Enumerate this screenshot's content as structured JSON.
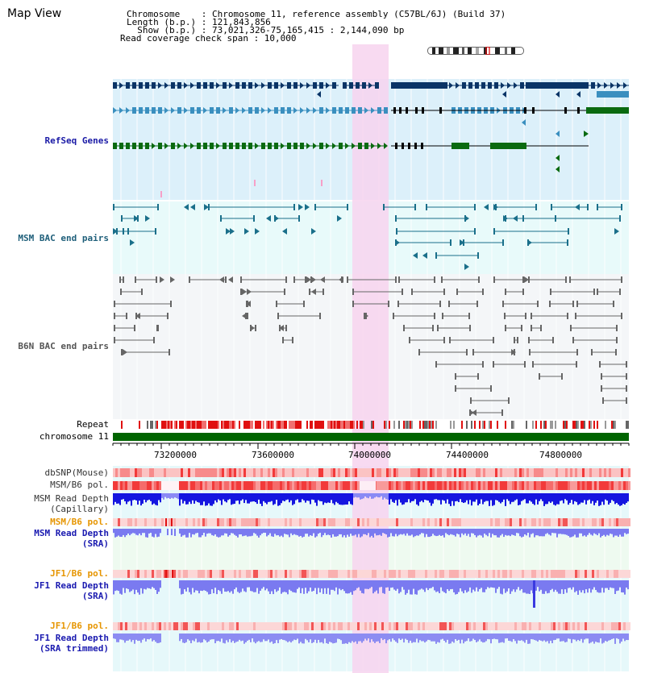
{
  "header": {
    "view_title": "Map View",
    "chromosome_line": "Chromosome    : Chromosome 11, reference assembly (C57BL/6J) (Build 37)",
    "length_line": "Length (b.p.) : 121,843,856",
    "show_line": "  Show (b.p.) : 73,021,326-75,165,415 : 2,144,090 bp",
    "coverage_line": "Read coverage check span : 10,000"
  },
  "tracks": {
    "refseq": "RefSeq Genes",
    "msm_bac": "MSM BAC end pairs",
    "b6n_bac": "B6N BAC end pairs",
    "repeat": "Repeat",
    "chromosome": "chromosome 11",
    "dbsnp": "dbSNP(Mouse)",
    "msm_b6_pol": "MSM/B6 pol.",
    "msm_read_depth_cap_1": "MSM Read Depth",
    "msm_read_depth_cap_2": "(Capillary)",
    "msm_b6_pol_2": "MSM/B6 pol.",
    "msm_read_depth_sra_1": "MSM Read Depth",
    "msm_read_depth_sra_2": "(SRA)",
    "jf1_b6_pol": "JF1/B6 pol.",
    "jf1_read_depth_sra_1": "JF1 Read Depth",
    "jf1_read_depth_sra_2": "(SRA)",
    "jf1_b6_pol_2": "JF1/B6 pol.",
    "jf1_read_depth_trim_1": "JF1 Read Depth",
    "jf1_read_depth_trim_2": "(SRA trimmed)"
  },
  "axis": {
    "ticks": [
      "73200000",
      "73600000",
      "74000000",
      "74400000",
      "74800000"
    ]
  },
  "colors": {
    "refseq_dark": "#0a3466",
    "refseq_mid": "#3a8fbf",
    "refseq_green": "#0a6a10",
    "msm_bac": "#1a6f8a",
    "b6n_bac": "#666666",
    "highlight": "#f7d3ef",
    "chromosome": "#006400",
    "depth_blue": "#1515e0",
    "depth_lightblue": "#7a7af0",
    "pol_red": "#f23a3a",
    "pol_pink": "#f7a2a2"
  }
}
